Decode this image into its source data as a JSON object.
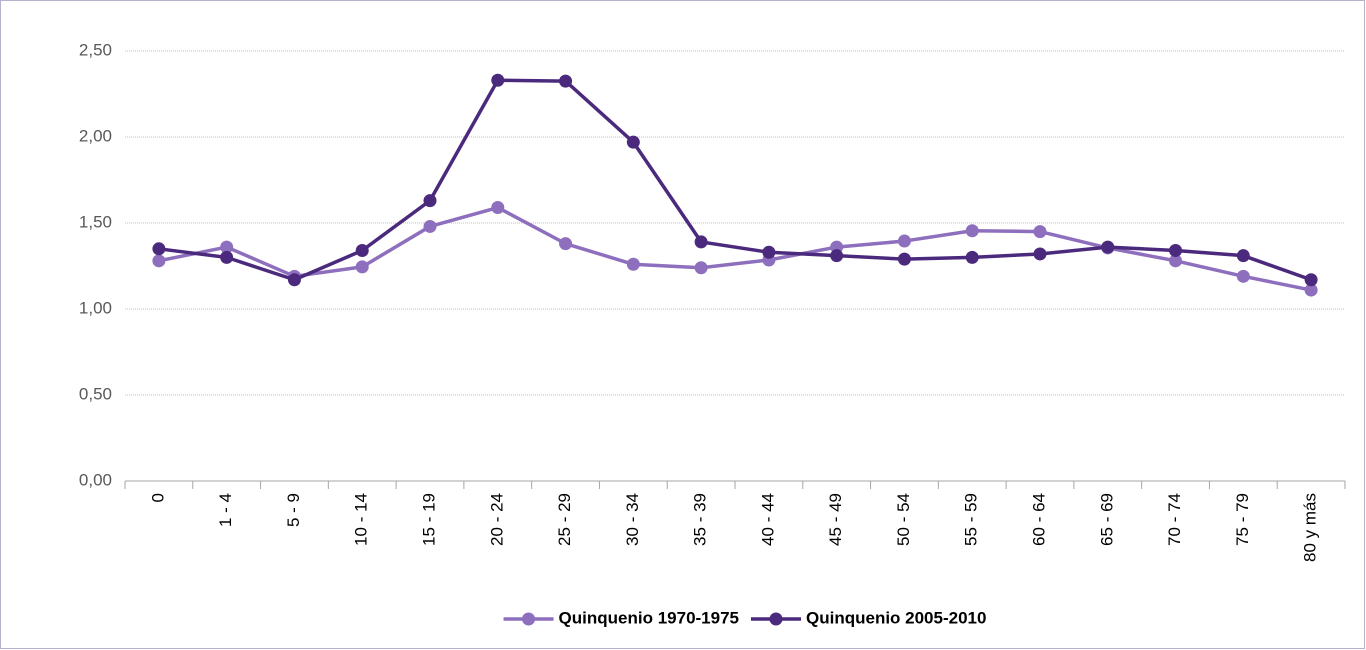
{
  "chart_data": {
    "type": "line",
    "categories": [
      "0",
      "1 - 4",
      "5 - 9",
      "10 - 14",
      "15 - 19",
      "20 - 24",
      "25 - 29",
      "30 - 34",
      "35 - 39",
      "40 - 44",
      "45 - 49",
      "50 - 54",
      "55 - 59",
      "60 - 64",
      "65 - 69",
      "70 - 74",
      "75 - 79",
      "80 y más"
    ],
    "series": [
      {
        "name": "Quinquenio 1970-1975",
        "color": "#8e6fbd",
        "values": [
          1.28,
          1.36,
          1.19,
          1.245,
          1.48,
          1.59,
          1.38,
          1.26,
          1.24,
          1.285,
          1.36,
          1.395,
          1.455,
          1.45,
          1.355,
          1.28,
          1.19,
          1.11
        ]
      },
      {
        "name": "Quinquenio 2005-2010",
        "color": "#4b2a7d",
        "values": [
          1.35,
          1.3,
          1.17,
          1.34,
          1.63,
          2.33,
          2.325,
          1.97,
          1.39,
          1.33,
          1.31,
          1.29,
          1.3,
          1.32,
          1.36,
          1.34,
          1.31,
          1.17
        ]
      }
    ],
    "ylim": [
      0,
      2.5
    ],
    "yticks": [
      {
        "value": 0,
        "label": "0,00"
      },
      {
        "value": 0.5,
        "label": "0,50"
      },
      {
        "value": 1,
        "label": "1,00"
      },
      {
        "value": 1.5,
        "label": "1,50"
      },
      {
        "value": 2,
        "label": "2,00"
      },
      {
        "value": 2.5,
        "label": "2,50"
      }
    ],
    "grid": true,
    "legend": "bottom"
  }
}
